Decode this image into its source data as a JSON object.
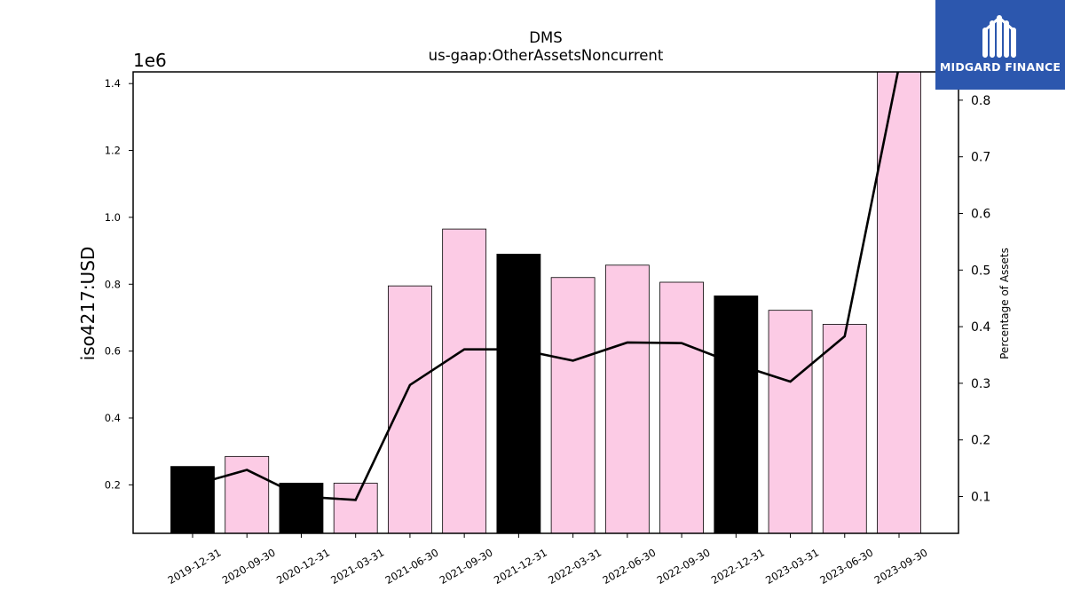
{
  "logo": {
    "brand": "MIDGARD FINANCE"
  },
  "colors": {
    "bar_default": "#fccbe5",
    "bar_highlight": "#000000",
    "line": "#000000",
    "logo_bg": "#2c57ae"
  },
  "chart_data": {
    "type": "bar",
    "title": "DMS",
    "subtitle": "us-gaap:OtherAssetsNoncurrent",
    "ylabel": "iso4217:USD",
    "y_offset_label": "1e6",
    "y2label": "Percentage of Assets",
    "categories": [
      "2019-12-31",
      "2020-09-30",
      "2020-12-31",
      "2021-03-31",
      "2021-06-30",
      "2021-09-30",
      "2021-12-31",
      "2022-03-31",
      "2022-06-30",
      "2022-09-30",
      "2022-12-31",
      "2023-03-31",
      "2023-06-30",
      "2023-09-30"
    ],
    "highlight": [
      true,
      false,
      true,
      false,
      false,
      false,
      true,
      false,
      false,
      false,
      true,
      false,
      false,
      false
    ],
    "series": [
      {
        "values": [
          0.255,
          0.285,
          0.205,
          0.205,
          0.795,
          0.965,
          0.89,
          0.82,
          0.857,
          0.806,
          0.765,
          0.722,
          0.68,
          1.435
        ]
      },
      {
        "axis": "right",
        "type": "line",
        "values": [
          0.12,
          0.147,
          0.1,
          0.094,
          0.297,
          0.36,
          0.36,
          0.34,
          0.372,
          0.371,
          0.334,
          0.303,
          0.383,
          0.86
        ]
      }
    ],
    "ylim": [
      0.055,
      1.435
    ],
    "y2lim": [
      0.035,
      0.85
    ],
    "yticks": [
      "0.2",
      "0.4",
      "0.6",
      "0.8",
      "1.0",
      "1.2",
      "1.4"
    ],
    "y2ticks": [
      "0.1",
      "0.2",
      "0.3",
      "0.4",
      "0.5",
      "0.6",
      "0.7",
      "0.8"
    ],
    "grid": false,
    "legend": "none"
  }
}
